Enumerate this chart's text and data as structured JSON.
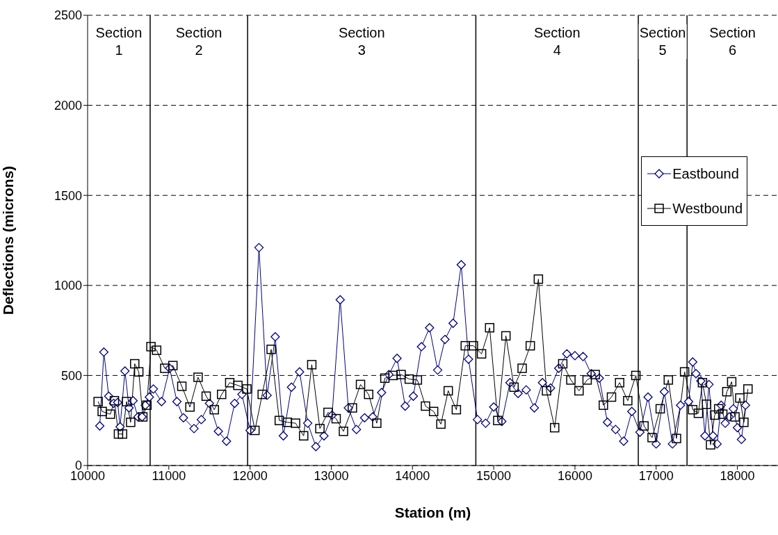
{
  "chart_data": {
    "type": "line",
    "xlabel": "Station (m)",
    "ylabel": "Deflections (microns)",
    "xlim": [
      10000,
      18500
    ],
    "xticks": [
      10000,
      11000,
      12000,
      13000,
      14000,
      15000,
      16000,
      17000,
      18000
    ],
    "ylim": [
      0,
      2500
    ],
    "yticks": [
      0,
      500,
      1000,
      1500,
      2000,
      2500
    ],
    "grid": "y",
    "legend": "right",
    "series": [
      {
        "name": "Eastbound",
        "color": "#000080",
        "marker": "diamond",
        "x": [
          10150,
          10200,
          10260,
          10320,
          10370,
          10400,
          10460,
          10510,
          10560,
          10620,
          10670,
          10710,
          10760,
          10810,
          10910,
          11010,
          11100,
          11180,
          11310,
          11400,
          11500,
          11610,
          11710,
          11810,
          11900,
          12000,
          12110,
          12210,
          12310,
          12410,
          12510,
          12610,
          12710,
          12810,
          12910,
          13010,
          13110,
          13210,
          13310,
          13410,
          13510,
          13620,
          13710,
          13810,
          13910,
          14010,
          14110,
          14210,
          14310,
          14400,
          14500,
          14600,
          14690,
          14800,
          14900,
          15000,
          15100,
          15200,
          15300,
          15400,
          15500,
          15600,
          15700,
          15800,
          15900,
          16000,
          16100,
          16200,
          16300,
          16400,
          16500,
          16600,
          16700,
          16800,
          16900,
          17000,
          17100,
          17200,
          17300,
          17400,
          17450,
          17490,
          17550,
          17600,
          17650,
          17700,
          17750,
          17800,
          17850,
          17900,
          17950,
          18000,
          18050,
          18100
        ],
        "values": [
          220,
          630,
          385,
          345,
          350,
          215,
          525,
          320,
          360,
          270,
          270,
          335,
          380,
          425,
          355,
          540,
          355,
          265,
          205,
          255,
          345,
          190,
          135,
          345,
          395,
          195,
          1210,
          390,
          715,
          165,
          435,
          520,
          235,
          105,
          165,
          280,
          920,
          320,
          200,
          265,
          270,
          405,
          505,
          595,
          330,
          385,
          660,
          765,
          530,
          700,
          790,
          1115,
          590,
          255,
          235,
          325,
          245,
          460,
          400,
          420,
          320,
          460,
          430,
          540,
          620,
          610,
          605,
          510,
          485,
          240,
          200,
          135,
          300,
          185,
          380,
          120,
          410,
          120,
          335,
          355,
          575,
          510,
          470,
          165,
          450,
          165,
          120,
          335,
          235,
          270,
          315,
          210,
          145,
          335
        ]
      },
      {
        "name": "Westbound",
        "color": "#000000",
        "marker": "square",
        "x": [
          10130,
          10180,
          10280,
          10330,
          10380,
          10430,
          10480,
          10530,
          10580,
          10630,
          10680,
          10730,
          10780,
          10850,
          10950,
          11050,
          11160,
          11260,
          11360,
          11460,
          11560,
          11650,
          11750,
          11850,
          11960,
          12060,
          12150,
          12260,
          12360,
          12460,
          12560,
          12660,
          12760,
          12860,
          12960,
          13060,
          13150,
          13260,
          13360,
          13460,
          13560,
          13660,
          13760,
          13860,
          13960,
          14060,
          14160,
          14260,
          14350,
          14440,
          14540,
          14650,
          14750,
          14850,
          14950,
          15050,
          15150,
          15250,
          15350,
          15450,
          15550,
          15650,
          15750,
          15850,
          15950,
          16050,
          16150,
          16250,
          16350,
          16450,
          16550,
          16650,
          16750,
          16850,
          16950,
          17050,
          17150,
          17250,
          17350,
          17450,
          17520,
          17570,
          17620,
          17670,
          17720,
          17770,
          17820,
          17870,
          17930,
          17970,
          18030,
          18080,
          18130
        ],
        "values": [
          355,
          300,
          285,
          360,
          175,
          175,
          355,
          240,
          565,
          520,
          270,
          335,
          660,
          640,
          540,
          555,
          440,
          325,
          490,
          385,
          310,
          395,
          460,
          445,
          425,
          195,
          395,
          645,
          250,
          240,
          235,
          165,
          560,
          205,
          295,
          260,
          190,
          320,
          450,
          395,
          235,
          485,
          500,
          505,
          480,
          475,
          330,
          300,
          230,
          415,
          310,
          665,
          665,
          620,
          765,
          250,
          720,
          435,
          540,
          665,
          1035,
          415,
          210,
          565,
          475,
          415,
          475,
          505,
          335,
          380,
          460,
          360,
          500,
          220,
          155,
          315,
          475,
          150,
          520,
          310,
          290,
          460,
          340,
          115,
          280,
          315,
          285,
          410,
          465,
          270,
          375,
          240,
          425
        ]
      }
    ],
    "ref_lines": [
      {
        "axis": "x",
        "value": 10770,
        "color": "#000000"
      },
      {
        "axis": "x",
        "value": 11970,
        "color": "#000000"
      },
      {
        "axis": "x",
        "value": 14780,
        "color": "#000000"
      },
      {
        "axis": "x",
        "value": 16780,
        "color": "#000000"
      },
      {
        "axis": "x",
        "value": 17380,
        "color": "#000000"
      }
    ],
    "annotations": [
      "Section 1",
      "Section 2",
      "Section 3",
      "Section 4",
      "Section 5",
      "Section 6"
    ]
  }
}
